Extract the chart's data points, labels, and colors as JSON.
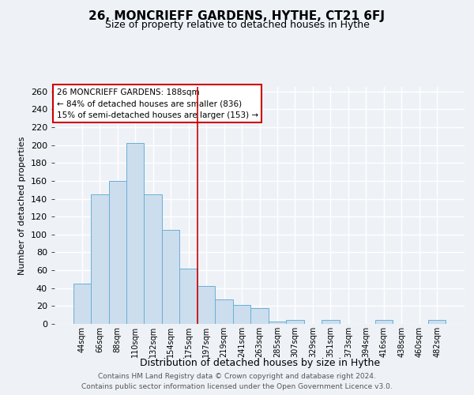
{
  "title": "26, MONCRIEFF GARDENS, HYTHE, CT21 6FJ",
  "subtitle": "Size of property relative to detached houses in Hythe",
  "xlabel": "Distribution of detached houses by size in Hythe",
  "ylabel": "Number of detached properties",
  "bar_labels": [
    "44sqm",
    "66sqm",
    "88sqm",
    "110sqm",
    "132sqm",
    "154sqm",
    "175sqm",
    "197sqm",
    "219sqm",
    "241sqm",
    "263sqm",
    "285sqm",
    "307sqm",
    "329sqm",
    "351sqm",
    "373sqm",
    "394sqm",
    "416sqm",
    "438sqm",
    "460sqm",
    "482sqm"
  ],
  "bar_values": [
    45,
    145,
    160,
    202,
    145,
    105,
    62,
    42,
    27,
    21,
    18,
    3,
    4,
    0,
    4,
    0,
    0,
    4,
    0,
    0,
    4
  ],
  "bar_color": "#ccdded",
  "bar_edge_color": "#6aafd6",
  "vline_x": 7.0,
  "vline_color": "#cc0000",
  "annotation_line1": "26 MONCRIEFF GARDENS: 188sqm",
  "annotation_line2": "← 84% of detached houses are smaller (836)",
  "annotation_line3": "15% of semi-detached houses are larger (153) →",
  "annotation_box_color": "#cc0000",
  "ylim": [
    0,
    265
  ],
  "yticks": [
    0,
    20,
    40,
    60,
    80,
    100,
    120,
    140,
    160,
    180,
    200,
    220,
    240,
    260
  ],
  "footer_line1": "Contains HM Land Registry data © Crown copyright and database right 2024.",
  "footer_line2": "Contains public sector information licensed under the Open Government Licence v3.0.",
  "background_color": "#eef2f7",
  "plot_bg_color": "#eef2f7",
  "title_fontsize": 11,
  "subtitle_fontsize": 9
}
